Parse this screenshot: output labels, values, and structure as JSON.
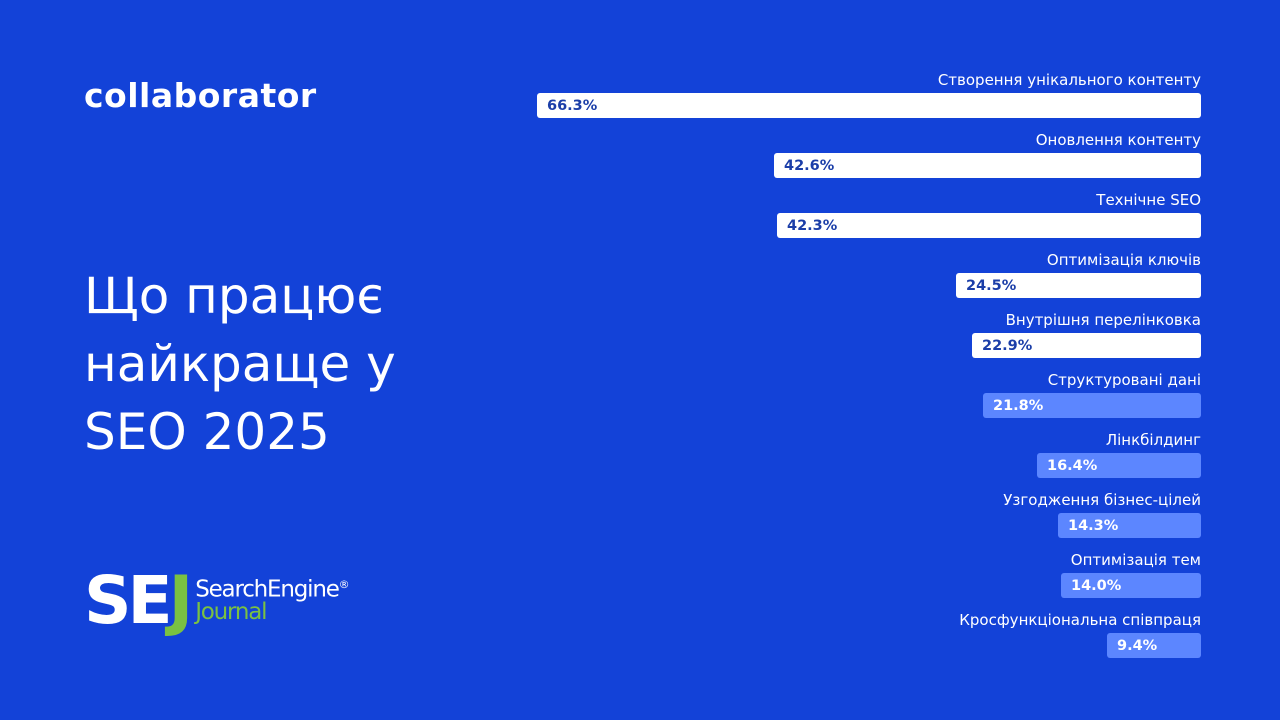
{
  "brand": {
    "collaborator_logo": "collaborator",
    "sej_logo": {
      "letters": [
        "S",
        "E",
        "J"
      ],
      "line1": "SearchEngine",
      "registered": "®",
      "line2": "Journal"
    }
  },
  "title_lines": [
    "Що працює",
    "найкраще у",
    "SEO 2025"
  ],
  "colors": {
    "background": "#1342d8",
    "bar_strong": "#ffffff",
    "bar_light": "#5c86ff",
    "value_text_strong": "#1b3ea8",
    "sej_green": "#7ac142"
  },
  "chart_data": {
    "type": "bar",
    "orientation": "horizontal",
    "title": "Що працює найкраще у SEO 2025",
    "xlabel": "",
    "ylabel": "",
    "grid": false,
    "legend": null,
    "xlim": [
      0,
      66.3
    ],
    "categories": [
      "Створення унікального контенту",
      "Оновлення контенту",
      "Технічне SEO",
      "Оптимізація ключів",
      "Внутрішня перелінковка",
      "Структуровані дані",
      "Лінкбілдинг",
      "Узгодження бізнес-цілей",
      "Оптимізація тем",
      "Кросфункціональна співпраця"
    ],
    "values": [
      66.3,
      42.6,
      42.3,
      24.5,
      22.9,
      21.8,
      16.4,
      14.3,
      14.0,
      9.4
    ],
    "value_labels": [
      "66.3%",
      "42.6%",
      "42.3%",
      "24.5%",
      "22.9%",
      "21.8%",
      "16.4%",
      "14.3%",
      "14.0%",
      "9.4%"
    ],
    "highlight": [
      "strong",
      "strong",
      "strong",
      "strong",
      "strong",
      "light",
      "light",
      "light",
      "light",
      "light"
    ]
  }
}
